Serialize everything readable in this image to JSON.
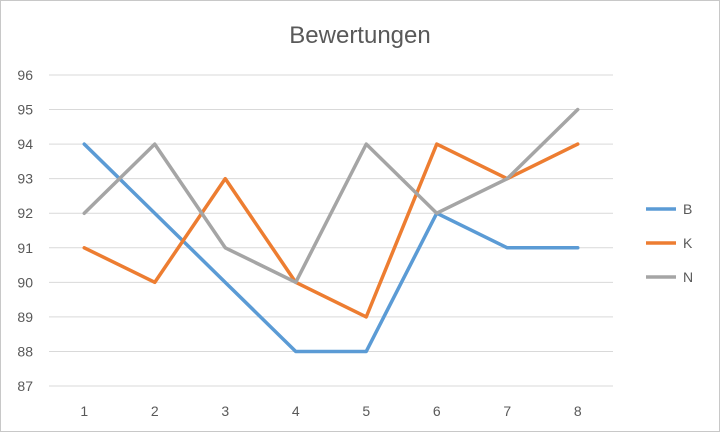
{
  "chart_data": {
    "type": "line",
    "title": "Bewertungen",
    "xlabel": "",
    "ylabel": "",
    "x": [
      "1",
      "2",
      "3",
      "4",
      "5",
      "6",
      "7",
      "8"
    ],
    "yticks": [
      "87",
      "88",
      "89",
      "90",
      "91",
      "92",
      "93",
      "94",
      "95",
      "96"
    ],
    "ylim": [
      87,
      96
    ],
    "grid": true,
    "legend_position": "right",
    "series": [
      {
        "name": "B",
        "color": "#5b9bd5",
        "values": [
          94,
          92,
          90,
          88,
          88,
          92,
          91,
          91
        ]
      },
      {
        "name": "K",
        "color": "#ed7d31",
        "values": [
          91,
          90,
          93,
          90,
          89,
          94,
          93,
          94
        ]
      },
      {
        "name": "N",
        "color": "#a5a5a5",
        "values": [
          92,
          94,
          91,
          90,
          94,
          92,
          93,
          95
        ]
      }
    ]
  }
}
